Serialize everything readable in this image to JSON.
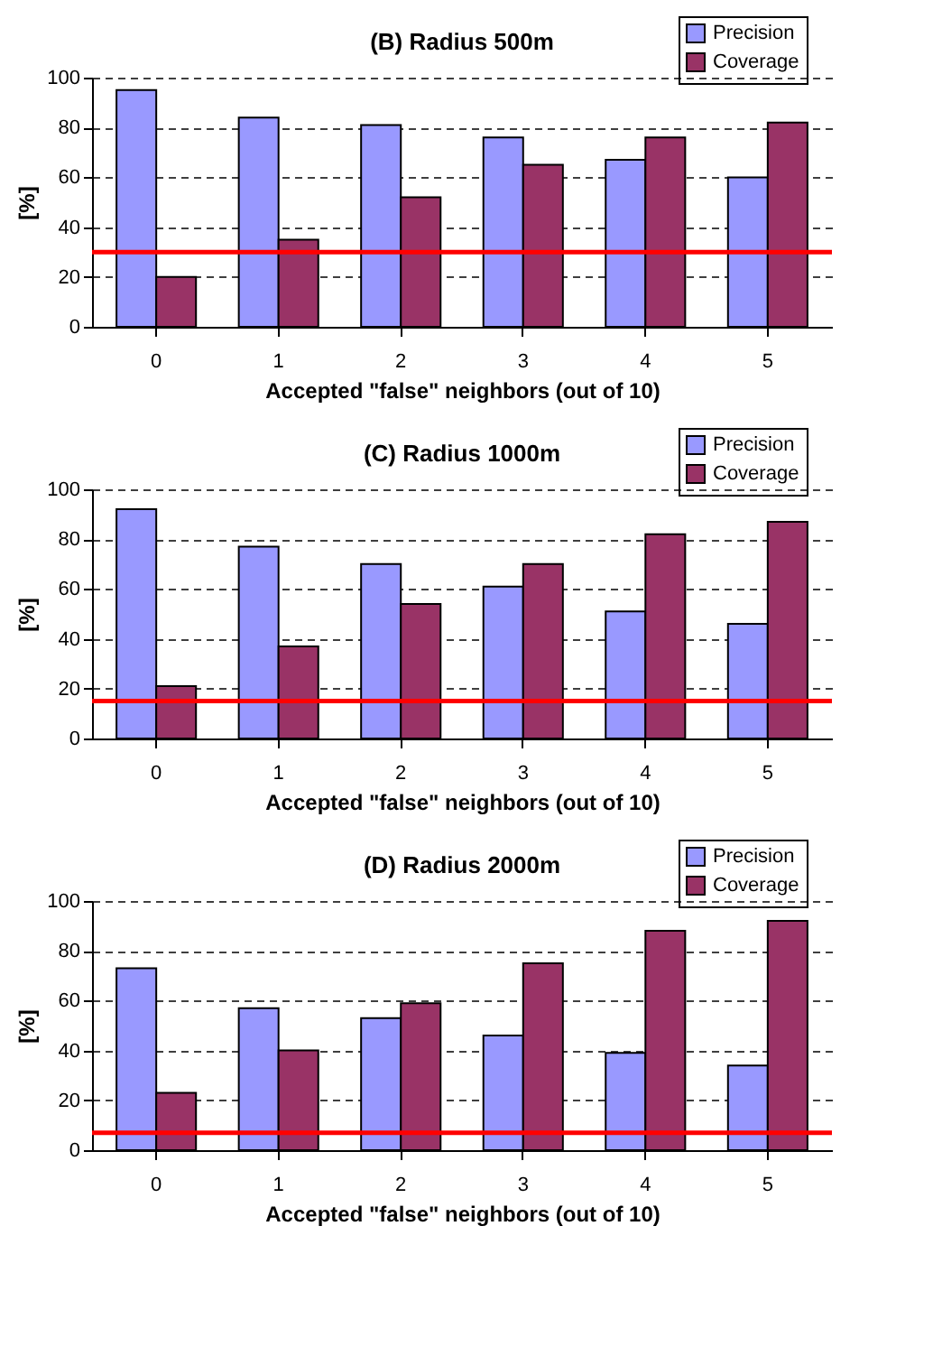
{
  "chart_data": [
    {
      "type": "bar",
      "title": "(B)  Radius 500m",
      "xlabel": "Accepted \"false\" neighbors (out of 10)",
      "ylabel": "[%]",
      "categories": [
        "0",
        "1",
        "2",
        "3",
        "4",
        "5"
      ],
      "series": [
        {
          "name": "Precision",
          "color": "#9999ff",
          "values": [
            95,
            84,
            81,
            76,
            67,
            60
          ]
        },
        {
          "name": "Coverage",
          "color": "#993366",
          "values": [
            20,
            35,
            52,
            65,
            76,
            82
          ]
        }
      ],
      "ylim": [
        0,
        100
      ],
      "yticks": [
        0,
        20,
        40,
        60,
        80,
        100
      ],
      "grid": "y",
      "legend": "top right",
      "ref_lines": [
        {
          "axis": "y",
          "value": 30,
          "color": "#ff0000"
        }
      ]
    },
    {
      "type": "bar",
      "title": "(C)  Radius 1000m",
      "xlabel": "Accepted \"false\" neighbors (out of 10)",
      "ylabel": "[%]",
      "categories": [
        "0",
        "1",
        "2",
        "3",
        "4",
        "5"
      ],
      "series": [
        {
          "name": "Precision",
          "color": "#9999ff",
          "values": [
            92,
            77,
            70,
            61,
            51,
            46
          ]
        },
        {
          "name": "Coverage",
          "color": "#993366",
          "values": [
            21,
            37,
            54,
            70,
            82,
            87
          ]
        }
      ],
      "ylim": [
        0,
        100
      ],
      "yticks": [
        0,
        20,
        40,
        60,
        80,
        100
      ],
      "grid": "y",
      "legend": "top right",
      "ref_lines": [
        {
          "axis": "y",
          "value": 15,
          "color": "#ff0000"
        }
      ]
    },
    {
      "type": "bar",
      "title": "(D)  Radius 2000m",
      "xlabel": "Accepted \"false\" neighbors (out of 10)",
      "ylabel": "[%]",
      "categories": [
        "0",
        "1",
        "2",
        "3",
        "4",
        "5"
      ],
      "series": [
        {
          "name": "Precision",
          "color": "#9999ff",
          "values": [
            73,
            57,
            53,
            46,
            39,
            34
          ]
        },
        {
          "name": "Coverage",
          "color": "#993366",
          "values": [
            23,
            40,
            59,
            75,
            88,
            92
          ]
        }
      ],
      "ylim": [
        0,
        100
      ],
      "yticks": [
        0,
        20,
        40,
        60,
        80,
        100
      ],
      "grid": "y",
      "legend": "top right",
      "ref_lines": [
        {
          "axis": "y",
          "value": 7,
          "color": "#ff0000"
        }
      ]
    }
  ]
}
